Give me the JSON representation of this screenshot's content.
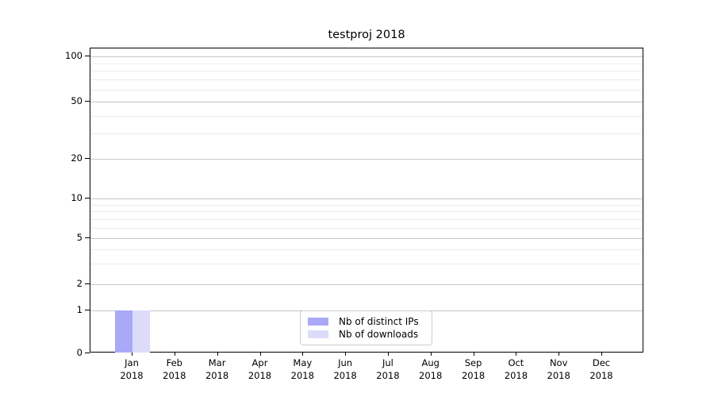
{
  "chart_data": {
    "type": "bar",
    "title": "testproj 2018",
    "categories": [
      "Jan",
      "Feb",
      "Mar",
      "Apr",
      "May",
      "Jun",
      "Jul",
      "Aug",
      "Sep",
      "Oct",
      "Nov",
      "Dec"
    ],
    "category_year": "2018",
    "series": [
      {
        "name": "Nb of distinct IPs",
        "color": "#a9a9f8",
        "values": [
          1,
          0,
          0,
          0,
          0,
          0,
          0,
          0,
          0,
          0,
          0,
          0
        ]
      },
      {
        "name": "Nb of downloads",
        "color": "#dcdcfa",
        "values": [
          1,
          0,
          0,
          0,
          0,
          0,
          0,
          0,
          0,
          0,
          0,
          0
        ]
      }
    ],
    "xlabel": "",
    "ylabel": "",
    "yscale": "symlog",
    "yticks": [
      0,
      1,
      2,
      5,
      10,
      20,
      50,
      100
    ],
    "y_minor_gridlines": [
      3,
      4,
      6,
      7,
      8,
      9,
      30,
      40,
      60,
      70,
      80,
      90
    ],
    "ylim": [
      0,
      115
    ],
    "grid": "horizontal major+minor",
    "legend_position": "lower center",
    "colors": {
      "major_grid": "#c6c6c6",
      "minor_grid": "#ebebeb",
      "axis": "#000000",
      "background": "#ffffff"
    }
  }
}
